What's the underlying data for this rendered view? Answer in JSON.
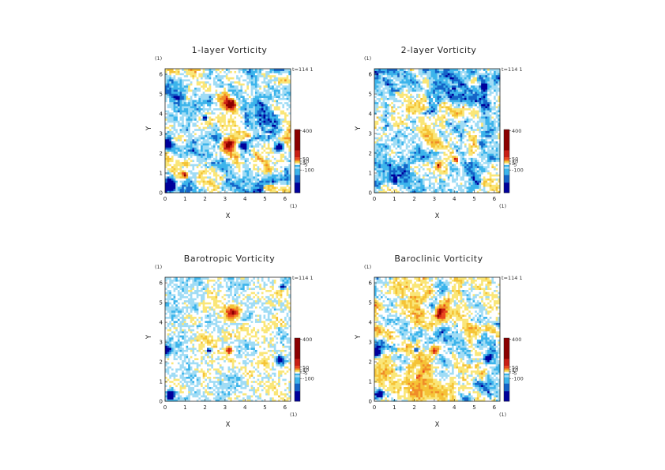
{
  "chart_data": [
    {
      "type": "heatmap",
      "title": "1-layer Vorticity",
      "xlabel": "X",
      "ylabel": "Y",
      "xlim": [
        0,
        6.283
      ],
      "ylim": [
        0,
        6.283
      ],
      "xticks": [
        "0",
        "1",
        "2",
        "3",
        "4",
        "5",
        "6"
      ],
      "yticks": [
        "0",
        "1",
        "2",
        "3",
        "4",
        "5",
        "6"
      ],
      "unit_top": "(1)",
      "unit_right": "(1)",
      "time_label": "t=114 1",
      "colorbar_ticks": [
        "400",
        "50",
        "10",
        "5",
        "-5",
        "-100"
      ],
      "colorbar_values": [
        400,
        50,
        10,
        5,
        -5,
        -100
      ],
      "colorbar_colors": [
        "#8b0000",
        "#c81e14",
        "#e8461e",
        "#f08c28",
        "#f5c337",
        "#fae678",
        "#ffffff",
        "#a0dcf5",
        "#3cb4eb",
        "#1464c8",
        "#00009b"
      ],
      "field_style": "mixed",
      "vortices": [
        {
          "x": 3.3,
          "y": 4.5,
          "r": 0.32,
          "sign": 1
        },
        {
          "x": 3.1,
          "y": 2.5,
          "r": 0.3,
          "sign": 1
        },
        {
          "x": 0.25,
          "y": 0.35,
          "r": 0.28,
          "sign": -1
        },
        {
          "x": 0.1,
          "y": 2.5,
          "r": 0.25,
          "sign": -1
        },
        {
          "x": 5.7,
          "y": 2.3,
          "r": 0.22,
          "sign": -1
        },
        {
          "x": 2.0,
          "y": 3.8,
          "r": 0.15,
          "sign": -1
        },
        {
          "x": 1.0,
          "y": 0.9,
          "r": 0.18,
          "sign": 1
        },
        {
          "x": 3.9,
          "y": 2.4,
          "r": 0.15,
          "sign": -1
        }
      ]
    },
    {
      "type": "heatmap",
      "title": "2-layer Vorticity",
      "xlabel": "X",
      "ylabel": "Y",
      "xlim": [
        0,
        6.283
      ],
      "ylim": [
        0,
        6.283
      ],
      "xticks": [
        "0",
        "1",
        "2",
        "3",
        "4",
        "5",
        "6"
      ],
      "yticks": [
        "0",
        "1",
        "2",
        "3",
        "4",
        "5",
        "6"
      ],
      "unit_top": "(1)",
      "unit_right": "(1)",
      "time_label": "t=114 1",
      "colorbar_ticks": [
        "400",
        "50",
        "10",
        "5",
        "-5",
        "-100"
      ],
      "colorbar_values": [
        400,
        50,
        10,
        5,
        -5,
        -100
      ],
      "colorbar_colors": [
        "#8b0000",
        "#c81e14",
        "#e8461e",
        "#f08c28",
        "#f5c337",
        "#fae678",
        "#ffffff",
        "#a0dcf5",
        "#3cb4eb",
        "#1464c8",
        "#00009b"
      ],
      "field_style": "negative",
      "vortices": [
        {
          "x": 4.1,
          "y": 1.7,
          "r": 0.14,
          "sign": 1
        },
        {
          "x": 1.0,
          "y": 0.6,
          "r": 0.12,
          "sign": -1
        },
        {
          "x": 5.5,
          "y": 5.4,
          "r": 0.15,
          "sign": -1
        },
        {
          "x": 3.2,
          "y": 1.4,
          "r": 0.12,
          "sign": 1
        }
      ]
    },
    {
      "type": "heatmap",
      "title": "Barotropic Vorticity",
      "xlabel": "X",
      "ylabel": "Y",
      "xlim": [
        0,
        6.283
      ],
      "ylim": [
        0,
        6.283
      ],
      "xticks": [
        "0",
        "1",
        "2",
        "3",
        "4",
        "5",
        "6"
      ],
      "yticks": [
        "0",
        "1",
        "2",
        "3",
        "4",
        "5",
        "6"
      ],
      "unit_top": "(1)",
      "unit_right": "(1)",
      "time_label": "t=114 1",
      "colorbar_ticks": [
        "400",
        "50",
        "10",
        "5",
        "-5",
        "-100"
      ],
      "colorbar_values": [
        400,
        50,
        10,
        5,
        -5,
        -100
      ],
      "colorbar_colors": [
        "#8b0000",
        "#c81e14",
        "#e8461e",
        "#f08c28",
        "#f5c337",
        "#fae678",
        "#ffffff",
        "#a0dcf5",
        "#3cb4eb",
        "#1464c8",
        "#00009b"
      ],
      "field_style": "weak",
      "vortices": [
        {
          "x": 3.4,
          "y": 4.5,
          "r": 0.3,
          "sign": 1
        },
        {
          "x": 3.2,
          "y": 2.6,
          "r": 0.16,
          "sign": 1
        },
        {
          "x": 0.3,
          "y": 0.35,
          "r": 0.22,
          "sign": -1
        },
        {
          "x": 0.1,
          "y": 2.6,
          "r": 0.22,
          "sign": -1
        },
        {
          "x": 5.75,
          "y": 2.1,
          "r": 0.2,
          "sign": -1
        },
        {
          "x": 2.2,
          "y": 2.6,
          "r": 0.12,
          "sign": -1
        },
        {
          "x": 5.9,
          "y": 5.8,
          "r": 0.12,
          "sign": -1
        }
      ]
    },
    {
      "type": "heatmap",
      "title": "Baroclinic Vorticity",
      "xlabel": "X",
      "ylabel": "Y",
      "xlim": [
        0,
        6.283
      ],
      "ylim": [
        0,
        6.283
      ],
      "xticks": [
        "0",
        "1",
        "2",
        "3",
        "4",
        "5",
        "6"
      ],
      "yticks": [
        "0",
        "1",
        "2",
        "3",
        "4",
        "5",
        "6"
      ],
      "unit_top": "(1)",
      "unit_right": "(1)",
      "time_label": "t=114 1",
      "colorbar_ticks": [
        "400",
        "50",
        "10",
        "5",
        "-5",
        "-100"
      ],
      "colorbar_values": [
        400,
        50,
        10,
        5,
        -5,
        -100
      ],
      "colorbar_colors": [
        "#8b0000",
        "#c81e14",
        "#e8461e",
        "#f08c28",
        "#f5c337",
        "#fae678",
        "#ffffff",
        "#a0dcf5",
        "#3cb4eb",
        "#1464c8",
        "#00009b"
      ],
      "field_style": "mixed",
      "vortices": [
        {
          "x": 3.3,
          "y": 4.5,
          "r": 0.28,
          "sign": 1
        },
        {
          "x": 3.0,
          "y": 2.6,
          "r": 0.22,
          "sign": 1
        },
        {
          "x": 0.25,
          "y": 0.35,
          "r": 0.26,
          "sign": -1
        },
        {
          "x": 0.1,
          "y": 2.5,
          "r": 0.24,
          "sign": -1
        },
        {
          "x": 5.7,
          "y": 2.2,
          "r": 0.2,
          "sign": -1
        },
        {
          "x": 2.1,
          "y": 2.6,
          "r": 0.14,
          "sign": -1
        }
      ]
    }
  ]
}
